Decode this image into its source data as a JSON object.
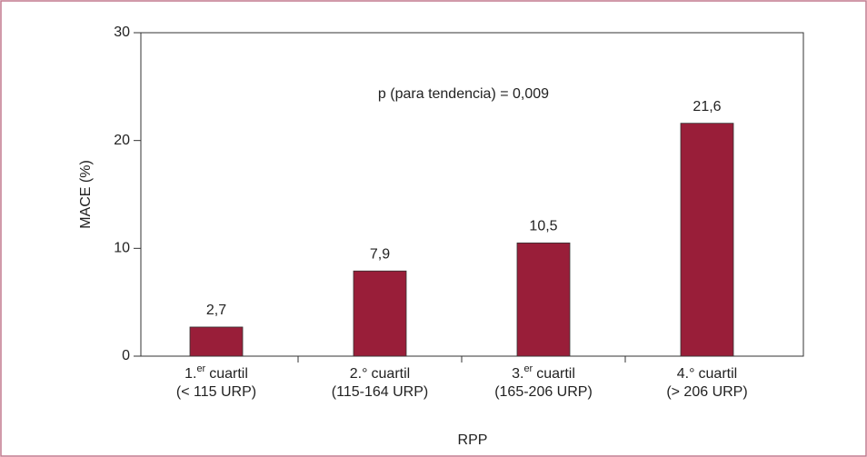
{
  "chart_data": {
    "type": "bar",
    "y_label": "MACE (%)",
    "x_label": "RPP",
    "annotation": "p (para tendencia) = 0,009",
    "categories": [
      {
        "ordinal": "1.",
        "sup": "er",
        "word": "cuartil",
        "range": "(< 115 URP)"
      },
      {
        "ordinal": "2.°",
        "word": "cuartil",
        "range": "(115-164 URP)"
      },
      {
        "ordinal": "3.",
        "sup": "er",
        "word": "cuartil",
        "range": "(165-206 URP)"
      },
      {
        "ordinal": "4.°",
        "word": "cuartil",
        "range": "(> 206 URP)"
      }
    ],
    "values": [
      2.7,
      7.9,
      10.5,
      21.6
    ],
    "value_labels": [
      "2,7",
      "7,9",
      "10,5",
      "21,6"
    ],
    "color": "#991e39",
    "ylim": [
      0,
      30
    ],
    "yticks": [
      0,
      10,
      20,
      30
    ],
    "grid": false
  }
}
